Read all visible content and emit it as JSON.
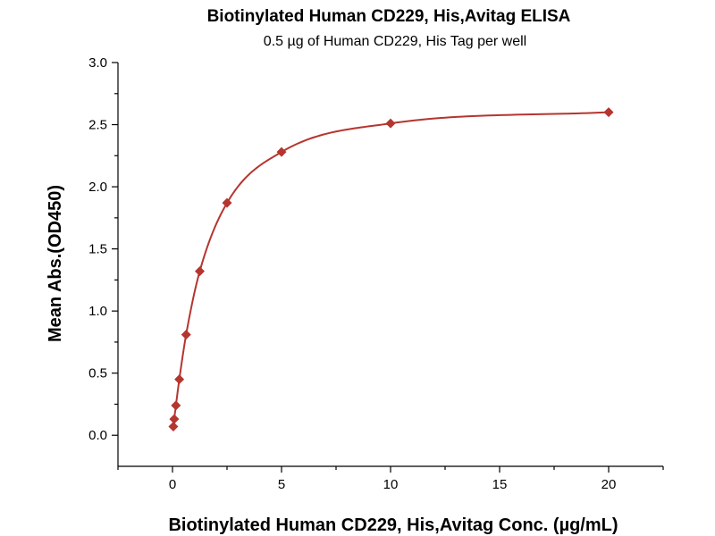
{
  "chart_data": {
    "type": "scatter",
    "title": "Biotinylated Human CD229, His,Avitag ELISA",
    "subtitle": "0.5 µg of Human CD229, His Tag per well",
    "xlabel": "Biotinylated Human CD229, His,Avitag Conc. (µg/mL)",
    "ylabel": "Mean Abs.(OD450)",
    "xlim": [
      -2.5,
      22.5
    ],
    "ylim": [
      -0.25,
      3.0
    ],
    "x_ticks": [
      0,
      5,
      10,
      15,
      20
    ],
    "x_tick_labels": [
      "0",
      "5",
      "10",
      "15",
      "20"
    ],
    "y_ticks": [
      0.0,
      0.5,
      1.0,
      1.5,
      2.0,
      2.5,
      3.0
    ],
    "y_tick_labels": [
      "0.0",
      "0.5",
      "1.0",
      "1.5",
      "2.0",
      "2.5",
      "3.0"
    ],
    "grid": false,
    "series": [
      {
        "x": [
          0.039,
          0.078,
          0.156,
          0.313,
          0.625,
          1.25,
          2.5,
          5,
          10,
          20
        ],
        "y": [
          0.07,
          0.13,
          0.24,
          0.45,
          0.81,
          1.32,
          1.87,
          2.28,
          2.51,
          2.6
        ],
        "color": "#b5352f",
        "marker": "diamond",
        "fit_line": true
      }
    ]
  }
}
